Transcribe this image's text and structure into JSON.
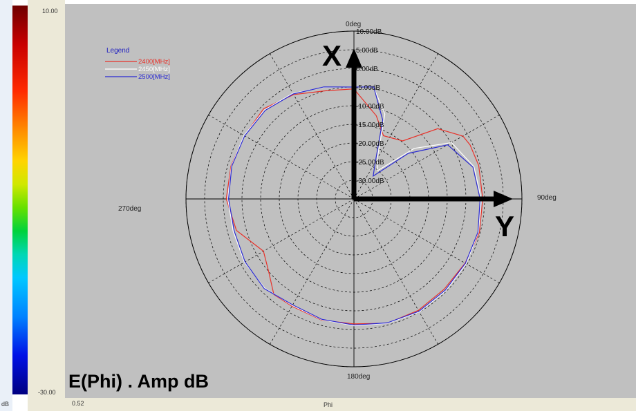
{
  "colorbar": {
    "max_label": "10.00",
    "min_label": "-30.00",
    "unit_label": "dB"
  },
  "footer": {
    "left_value": "0.52",
    "axis_label": "Phi"
  },
  "colors": {
    "panel": "#c0c0c0",
    "r2400": "#e8322a",
    "r2450": "#ffffff",
    "r2500": "#2a2ad2",
    "legend_title": "#2020c0",
    "axes": "#000000"
  },
  "chart_data": {
    "type": "line",
    "subtype": "polar",
    "title": "E(Phi) . Amp dB",
    "angle_labels": [
      "0deg",
      "90deg",
      "180deg",
      "270deg"
    ],
    "radial_tick_labels": [
      "10.00dB",
      "5.00dB",
      "0.00dB",
      "-5.00dB",
      "-10.00dB",
      "-15.00dB",
      "-20.00dB",
      "-25.00dB",
      "-30.00dB"
    ],
    "radial_tick_values": [
      10,
      5,
      0,
      -5,
      -10,
      -15,
      -20,
      -25,
      -30
    ],
    "rlim": [
      -35,
      10
    ],
    "angle_unit": "deg",
    "grid": true,
    "legend": {
      "title": "Legend",
      "position": "top-left",
      "entries": [
        "2400[MHz]",
        "2450[MHz]",
        "2500[MHz]"
      ]
    },
    "annotations": {
      "x_axis": "X",
      "y_axis": "Y"
    },
    "series": [
      {
        "name": "2400[MHz]",
        "color": "#e8322a",
        "angles": [
          0,
          15,
          25,
          40,
          50,
          60,
          65,
          75,
          90,
          105,
          120,
          135,
          150,
          165,
          180,
          195,
          210,
          220,
          230,
          240,
          255,
          270,
          285,
          300,
          315,
          330,
          345,
          360
        ],
        "values": [
          -5.5,
          -11.9,
          -16.3,
          -14.7,
          -5.7,
          -1.3,
          -0.7,
          -0.4,
          -0.5,
          -0.2,
          -0.6,
          -0.8,
          -0.5,
          -0.5,
          -1.5,
          -1.4,
          -1.8,
          -1.6,
          -5.1,
          -7.0,
          -2.4,
          -0.8,
          -0.9,
          -1.1,
          -0.8,
          -2.7,
          -5.0,
          -5.5
        ]
      },
      {
        "name": "2450[MHz]",
        "color": "#ffffff",
        "angles": [
          0,
          10,
          20,
          30,
          40,
          50,
          60,
          75,
          90,
          105,
          120,
          135,
          150,
          165,
          180,
          195,
          210,
          225,
          240,
          255,
          270,
          285,
          300,
          315,
          330,
          345,
          360
        ],
        "values": [
          -5.0,
          -4.6,
          -10.8,
          -22.5,
          -25.1,
          -13.9,
          -4.8,
          -1.7,
          -0.9,
          -0.5,
          -0.3,
          -0.2,
          0.0,
          -0.5,
          -1.0,
          -1.5,
          -2.0,
          -1.2,
          -1.1,
          -1.5,
          -1.2,
          -1.0,
          -1.0,
          -1.2,
          -2.3,
          -4.0,
          -5.0
        ]
      },
      {
        "name": "2500[MHz]",
        "color": "#2a2ad2",
        "angles": [
          0,
          10,
          20,
          30,
          40,
          50,
          60,
          75,
          90,
          105,
          120,
          135,
          150,
          165,
          180,
          195,
          210,
          225,
          240,
          255,
          270,
          285,
          300,
          315,
          330,
          345,
          360
        ],
        "values": [
          -5.0,
          -4.5,
          -12.5,
          -23.5,
          -27.0,
          -16.0,
          -6.0,
          -2.0,
          -1.2,
          -0.6,
          -0.5,
          -0.4,
          -0.2,
          -0.6,
          -1.2,
          -1.6,
          -2.2,
          -1.0,
          -1.3,
          -1.8,
          -1.4,
          -1.1,
          -1.2,
          -1.4,
          -2.5,
          -3.9,
          -5.0
        ]
      }
    ]
  }
}
